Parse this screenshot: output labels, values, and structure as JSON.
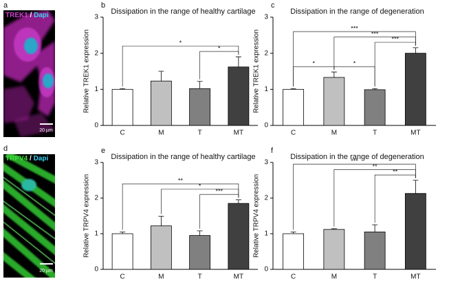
{
  "images": [
    {
      "panel": "a",
      "stain": "TREK1",
      "separator": "/",
      "counterstain": "Dapi",
      "scale_bar": "20 µm"
    },
    {
      "panel": "d",
      "stain": "TRPV4",
      "separator": "/",
      "counterstain": "Dapi",
      "scale_bar": "20 µm"
    }
  ],
  "chart_data": [
    {
      "type": "bar",
      "panel": "b",
      "title": "Dissipation in the range of healthy cartilage",
      "y_label": "Relative TREK1 expression",
      "categories": [
        "C",
        "M",
        "T",
        "MT"
      ],
      "values": [
        1.0,
        1.23,
        1.02,
        1.62
      ],
      "errors": [
        0.02,
        0.27,
        0.2,
        0.28
      ],
      "colors": [
        "#ffffff",
        "#c0c0c0",
        "#808080",
        "#404040"
      ],
      "ylim": [
        0,
        3
      ],
      "yticks": [
        0,
        1,
        2,
        3
      ],
      "significance": [
        {
          "from": 0,
          "to": 3,
          "label": "*"
        },
        {
          "from": 2,
          "to": 3,
          "label": "*"
        }
      ]
    },
    {
      "type": "bar",
      "panel": "c",
      "title": "Dissipation in the range of degeneration",
      "y_label": "Relative TREK1 expression",
      "categories": [
        "C",
        "M",
        "T",
        "MT"
      ],
      "values": [
        1.0,
        1.33,
        0.99,
        2.0
      ],
      "errors": [
        0.02,
        0.15,
        0.03,
        0.15
      ],
      "colors": [
        "#ffffff",
        "#c0c0c0",
        "#808080",
        "#404040"
      ],
      "ylim": [
        0,
        3
      ],
      "yticks": [
        0,
        1,
        2,
        3
      ],
      "significance": [
        {
          "from": 0,
          "to": 3,
          "label": "***"
        },
        {
          "from": 1,
          "to": 3,
          "label": "***"
        },
        {
          "from": 2,
          "to": 3,
          "label": "***"
        },
        {
          "from": 0,
          "to": 1,
          "label": "*"
        },
        {
          "from": 1,
          "to": 2,
          "label": "*"
        }
      ]
    },
    {
      "type": "bar",
      "panel": "e",
      "title": "Dissipation in the range of healthy cartilage",
      "y_label": "Relative TRPV4 expression",
      "categories": [
        "C",
        "M",
        "T",
        "MT"
      ],
      "values": [
        1.0,
        1.22,
        0.95,
        1.85
      ],
      "errors": [
        0.05,
        0.27,
        0.13,
        0.1
      ],
      "colors": [
        "#ffffff",
        "#c0c0c0",
        "#808080",
        "#404040"
      ],
      "ylim": [
        0,
        3
      ],
      "yticks": [
        0,
        1,
        2,
        3
      ],
      "significance": [
        {
          "from": 0,
          "to": 3,
          "label": "**"
        },
        {
          "from": 1,
          "to": 3,
          "label": "*"
        },
        {
          "from": 2,
          "to": 3,
          "label": "***"
        }
      ]
    },
    {
      "type": "bar",
      "panel": "f",
      "title": "Dissipation in the range of degeneration",
      "y_label": "Relative TRPV4 expression",
      "categories": [
        "C",
        "M",
        "T",
        "MT"
      ],
      "values": [
        1.0,
        1.12,
        1.05,
        2.13
      ],
      "errors": [
        0.05,
        0.02,
        0.2,
        0.37
      ],
      "colors": [
        "#ffffff",
        "#c0c0c0",
        "#808080",
        "#404040"
      ],
      "ylim": [
        0,
        3
      ],
      "yticks": [
        0,
        1,
        2,
        3
      ],
      "significance": [
        {
          "from": 0,
          "to": 3,
          "label": "***"
        },
        {
          "from": 1,
          "to": 3,
          "label": "**"
        },
        {
          "from": 2,
          "to": 3,
          "label": "**"
        }
      ]
    }
  ]
}
